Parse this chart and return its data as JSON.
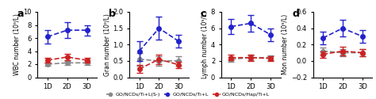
{
  "panels": [
    {
      "label": "a",
      "ylabel": "WBC number (10⁹/L)",
      "ylim": [
        0,
        10
      ],
      "yticks": [
        0,
        2,
        4,
        6,
        8,
        10
      ],
      "blue_data": {
        "mean": [
          6.2,
          7.2,
          7.2
        ],
        "err": [
          1.0,
          1.2,
          0.8
        ]
      },
      "red_data": {
        "mean": [
          2.6,
          3.1,
          2.6
        ],
        "err": [
          0.4,
          0.5,
          0.4
        ]
      },
      "gray_data": {
        "mean": [
          2.0,
          2.2,
          2.2
        ],
        "err": [
          0.3,
          0.3,
          0.3
        ]
      }
    },
    {
      "label": "b",
      "ylabel": "Gran number (10⁹/L)",
      "ylim": [
        0.0,
        2.0
      ],
      "yticks": [
        0.0,
        0.5,
        1.0,
        1.5,
        2.0
      ],
      "blue_data": {
        "mean": [
          0.8,
          1.5,
          1.1
        ],
        "err": [
          0.3,
          0.35,
          0.2
        ]
      },
      "red_data": {
        "mean": [
          0.25,
          0.55,
          0.38
        ],
        "err": [
          0.12,
          0.15,
          0.1
        ]
      },
      "gray_data": {
        "mean": [
          0.55,
          0.5,
          0.5
        ],
        "err": [
          0.2,
          0.15,
          0.15
        ]
      }
    },
    {
      "label": "c",
      "ylabel": "Lymph number (10⁹/L)",
      "ylim": [
        0,
        8
      ],
      "yticks": [
        0,
        2,
        4,
        6,
        8
      ],
      "blue_data": {
        "mean": [
          6.2,
          6.6,
          5.2
        ],
        "err": [
          0.9,
          1.0,
          0.8
        ]
      },
      "red_data": {
        "mean": [
          2.4,
          2.4,
          2.3
        ],
        "err": [
          0.35,
          0.4,
          0.3
        ]
      },
      "gray_data": {
        "mean": [
          2.2,
          2.4,
          2.4
        ],
        "err": [
          0.3,
          0.3,
          0.3
        ]
      }
    },
    {
      "label": "d",
      "ylabel": "Mon number (10⁹/L)",
      "ylim": [
        -0.2,
        0.6
      ],
      "yticks": [
        -0.2,
        0.0,
        0.2,
        0.4,
        0.6
      ],
      "blue_data": {
        "mean": [
          0.28,
          0.4,
          0.3
        ],
        "err": [
          0.08,
          0.1,
          0.08
        ]
      },
      "red_data": {
        "mean": [
          0.08,
          0.12,
          0.1
        ],
        "err": [
          0.04,
          0.05,
          0.04
        ]
      },
      "gray_data": {
        "mean": [
          0.12,
          0.1,
          0.1
        ],
        "err": [
          0.04,
          0.04,
          0.04
        ]
      }
    }
  ],
  "xticklabels": [
    "1D",
    "2D",
    "3D"
  ],
  "blue_color": "#2222cc",
  "red_color": "#cc2222",
  "gray_color": "#888888",
  "legend_entries": [
    {
      "label": "GO/NCDs/Ti+L(S-)",
      "color": "#888888",
      "linestyle": "--"
    },
    {
      "label": "GO/NCDs/Ti+L",
      "color": "#2222cc",
      "linestyle": "--"
    },
    {
      "label": "GO/NCDs/Hap/Ti+L",
      "color": "#cc2222",
      "linestyle": "--"
    }
  ],
  "marker": "o",
  "markersize": 4,
  "linewidth": 1.2,
  "capsize": 3,
  "elinewidth": 1.0
}
